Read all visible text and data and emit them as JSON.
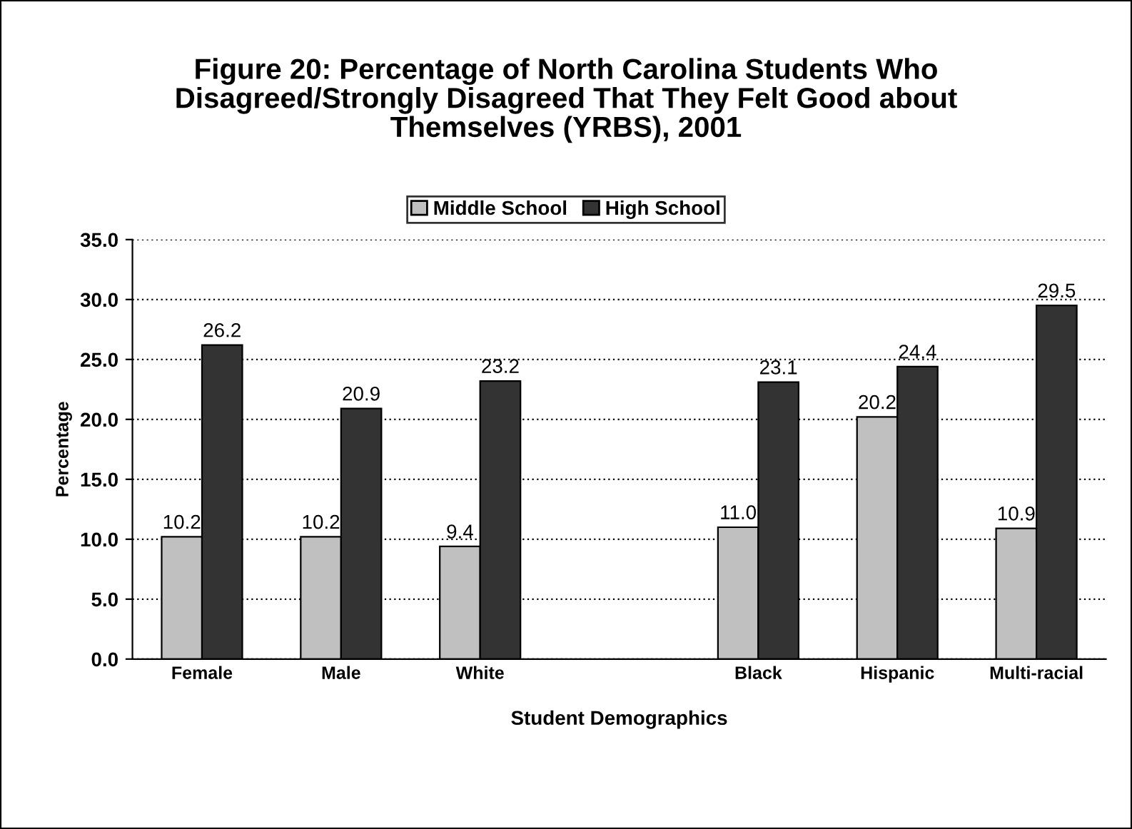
{
  "chart_data": {
    "type": "bar",
    "title": "Figure 20: Percentage of North Carolina Students Who\nDisagreed/Strongly Disagreed That They Felt Good about\nThemselves (YRBS), 2001",
    "xlabel": "Student Demographics",
    "ylabel": "Percentage",
    "categories": [
      "Female",
      "Male",
      "White",
      null,
      "Black",
      "Hispanic",
      "Multi-racial"
    ],
    "series": [
      {
        "name": "Middle School",
        "color": "#c0c0c0",
        "values": [
          10.2,
          10.2,
          9.4,
          null,
          11.0,
          20.2,
          10.9
        ],
        "value_labels": [
          "10.2",
          "10.2",
          "9.4",
          null,
          "11.0",
          "20.2",
          "10.9"
        ]
      },
      {
        "name": "High School",
        "color": "#333333",
        "values": [
          26.2,
          20.9,
          23.2,
          null,
          23.1,
          24.4,
          29.5
        ],
        "value_labels": [
          "26.2",
          "20.9",
          "23.2",
          null,
          "23.1",
          "24.4",
          "29.5"
        ]
      }
    ],
    "ylim": [
      0,
      35
    ],
    "yticks": [
      {
        "value": 0,
        "label": "0.0"
      },
      {
        "value": 5,
        "label": "5.0"
      },
      {
        "value": 10,
        "label": "10.0"
      },
      {
        "value": 15,
        "label": "15.0"
      },
      {
        "value": 20,
        "label": "20.0"
      },
      {
        "value": 25,
        "label": "25.0"
      },
      {
        "value": 30,
        "label": "30.0"
      },
      {
        "value": 35,
        "label": "35.0"
      }
    ],
    "grid": "y",
    "legend": "top"
  }
}
